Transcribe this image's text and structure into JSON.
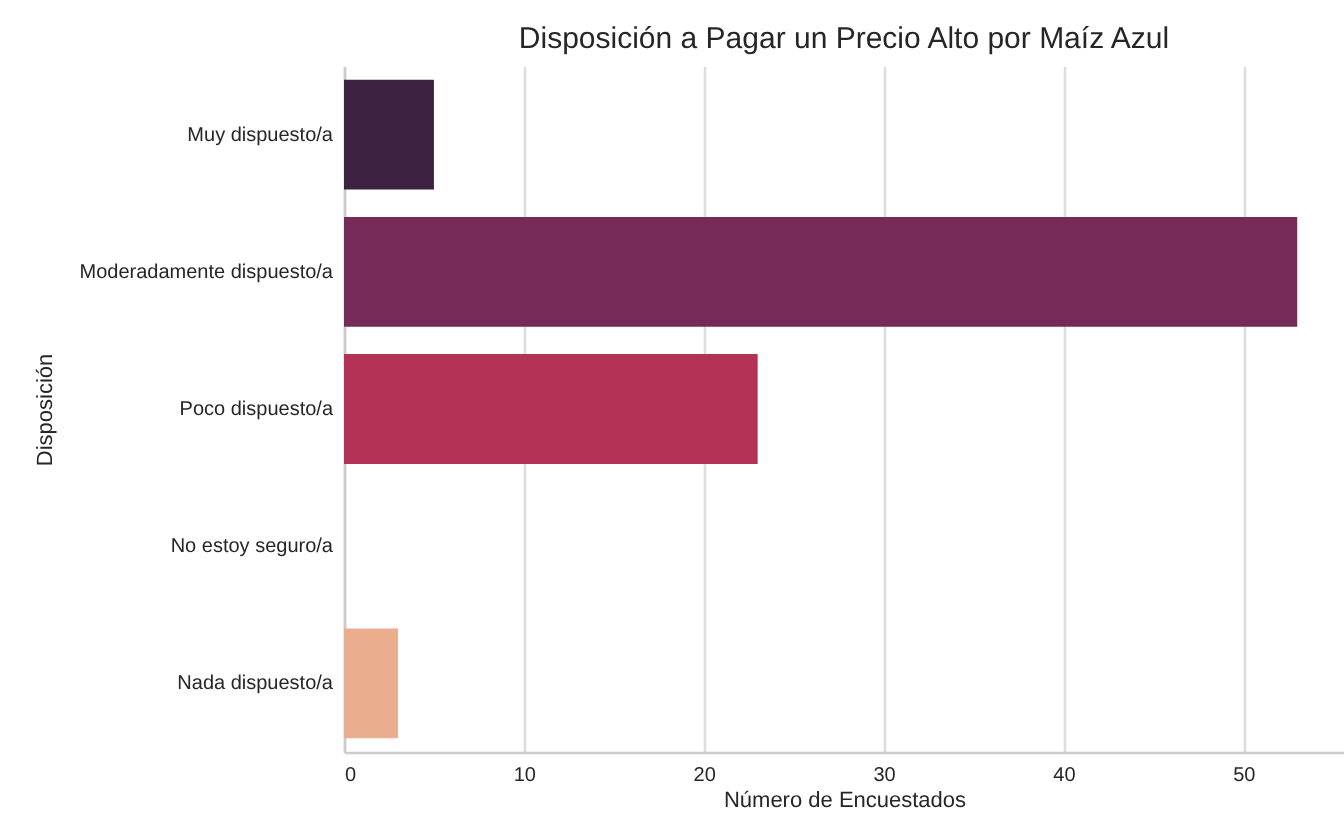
{
  "chart_data": {
    "type": "bar",
    "orientation": "horizontal",
    "title": "Disposición a Pagar un Precio Alto por Maíz Azul",
    "xlabel": "Número de Encuestados",
    "ylabel": "Disposición",
    "categories": [
      "Muy dispuesto/a",
      "Moderadamente dispuesto/a",
      "Poco dispuesto/a",
      "No estoy seguro/a",
      "Nada dispuesto/a"
    ],
    "values": [
      5,
      53,
      23,
      0,
      3
    ],
    "colors": [
      "#3d2140",
      "#762a57",
      "#b33256",
      "#e0584a",
      "#eaae8f"
    ],
    "xlim": [
      0,
      55.6
    ],
    "xticks": [
      0,
      10,
      20,
      30,
      40,
      50
    ],
    "grid": "x"
  }
}
